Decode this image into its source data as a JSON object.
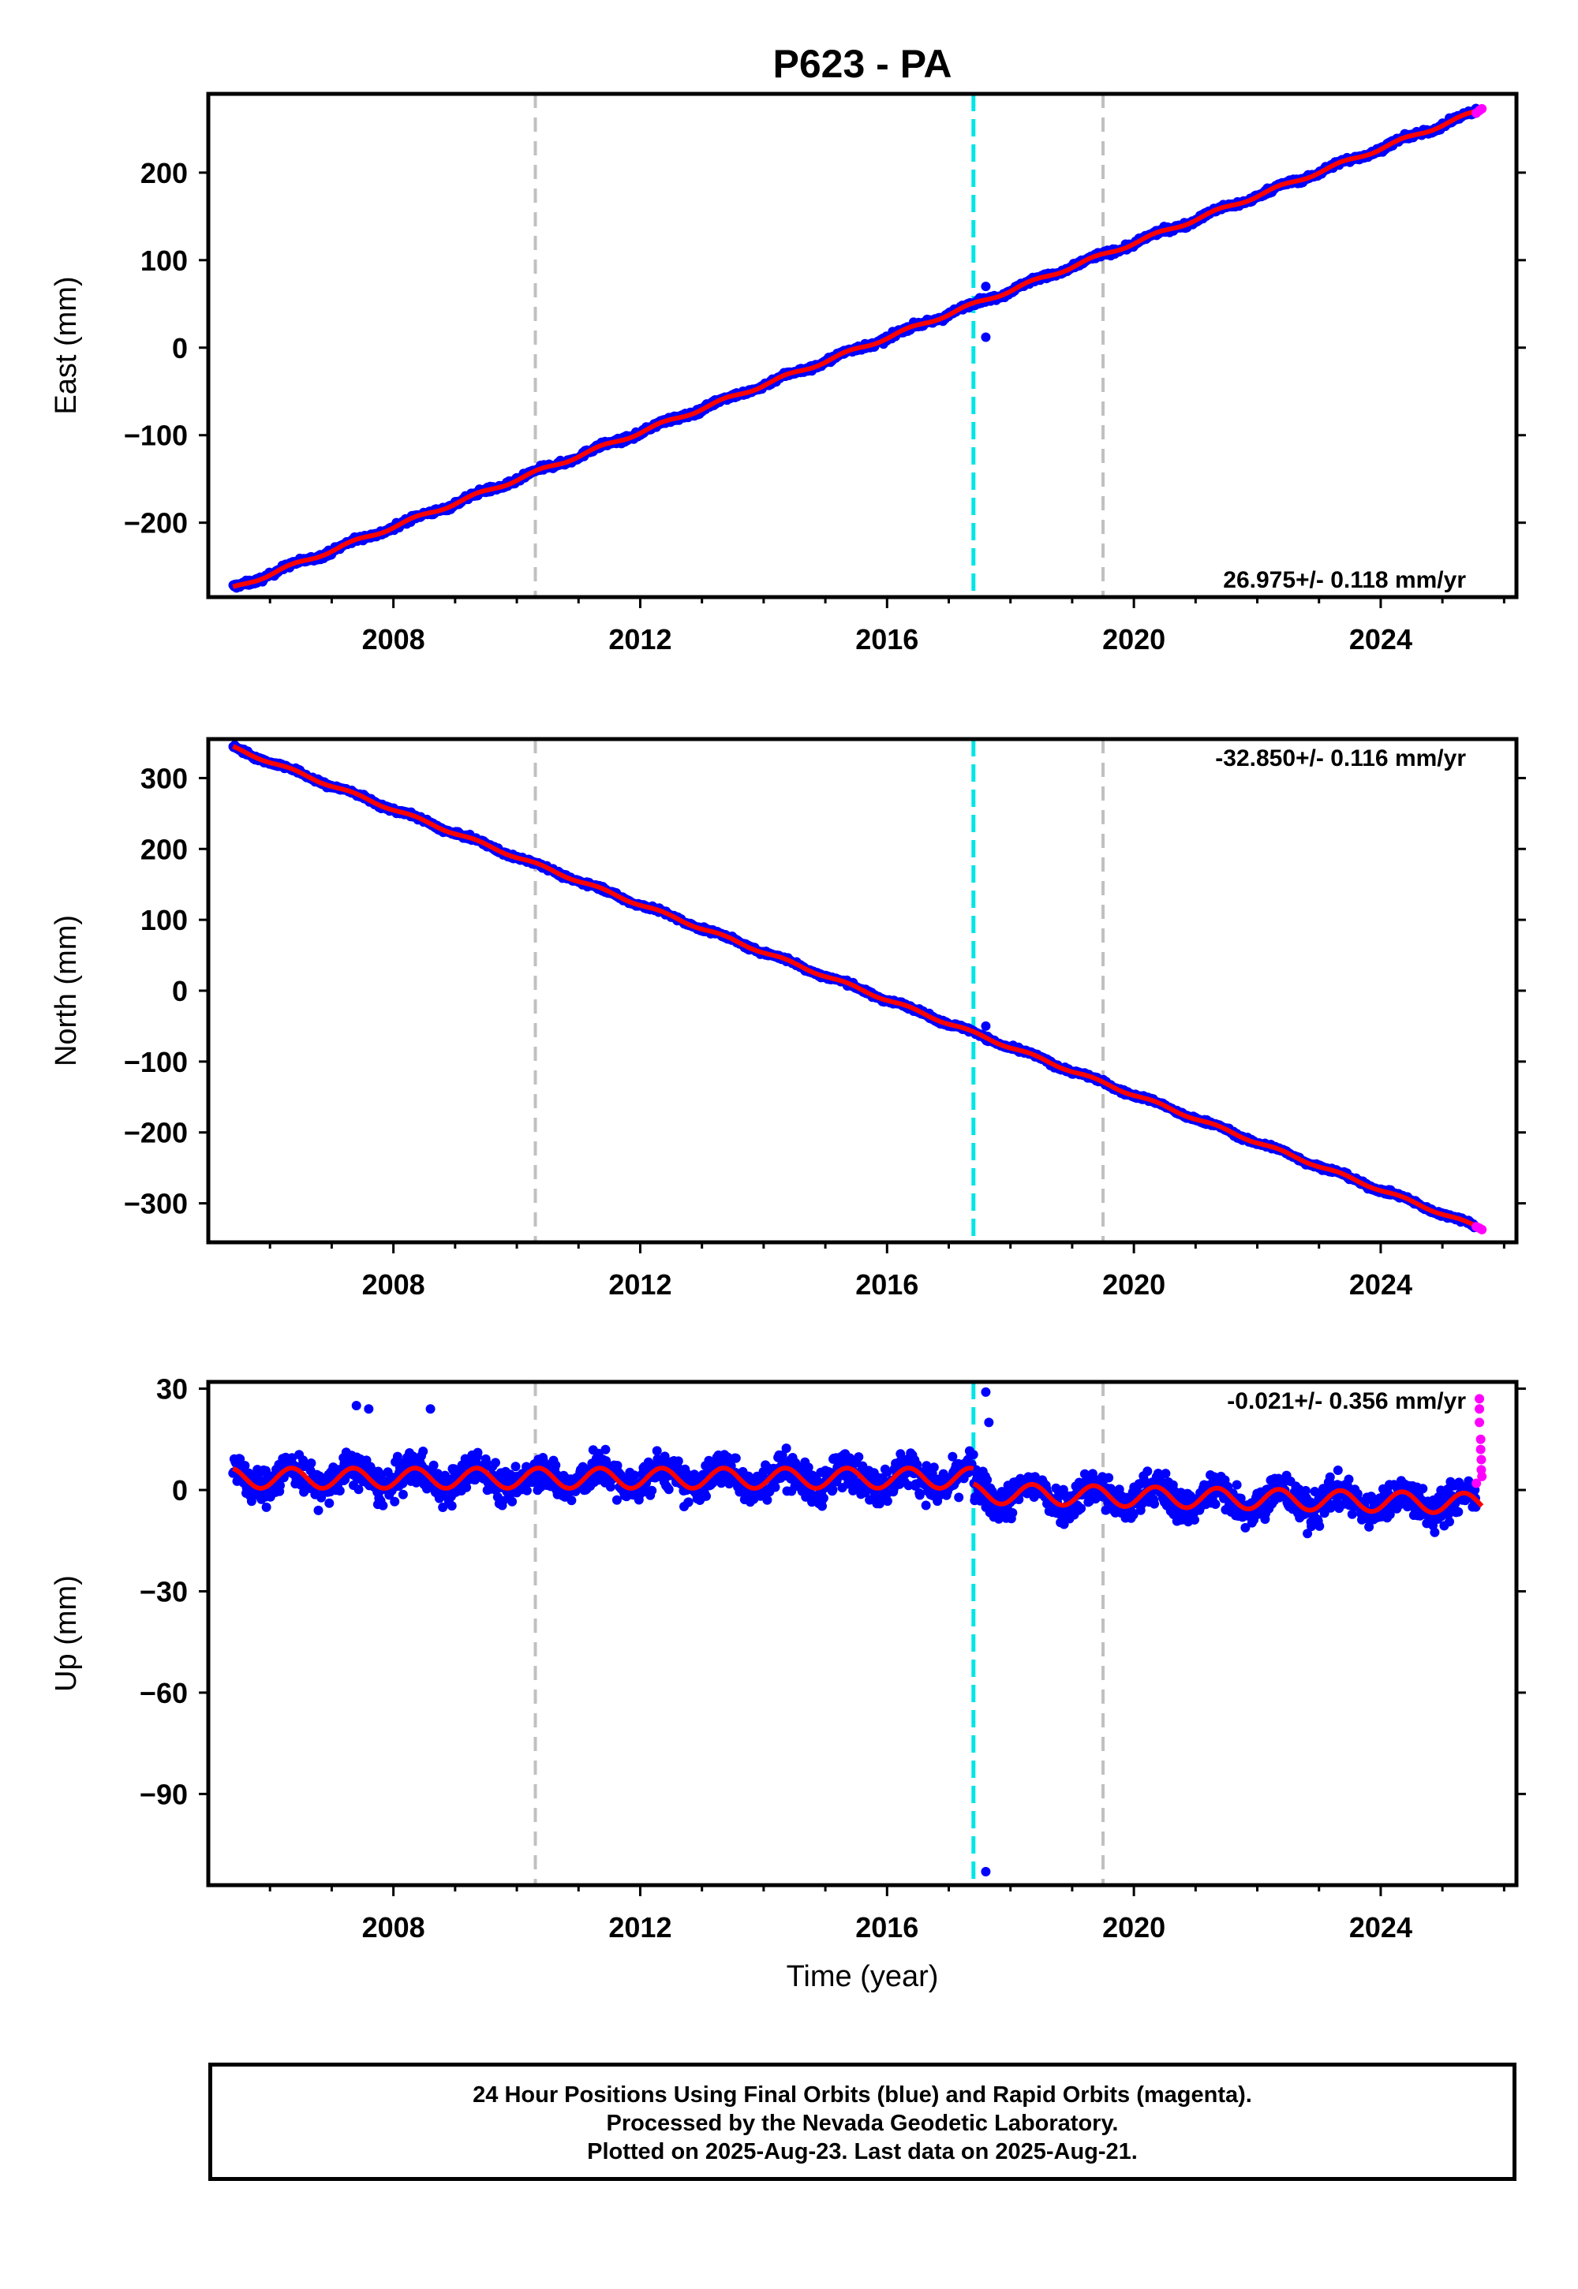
{
  "title": "P623 - PA",
  "colors": {
    "final_orbits": "#0000ff",
    "rapid_orbits": "#ff00ff",
    "model": "#ff0000",
    "eq_line": "#00e5e5",
    "equip_line": "#c0c0c0"
  },
  "footer": {
    "line1": "24 Hour Positions Using Final Orbits (blue) and Rapid Orbits (magenta).",
    "line2": "Processed by the Nevada Geodetic Laboratory.",
    "line3": "Plotted on 2025-Aug-23. Last data on 2025-Aug-21."
  },
  "chart_data": [
    {
      "type": "scatter",
      "ylabel": "East (mm)",
      "xlabel": "",
      "rate": "26.975+/- 0.118 mm/yr",
      "xlim": [
        2005.0,
        2026.2
      ],
      "ylim": [
        -285,
        290
      ],
      "yticks": [
        200,
        100,
        0,
        -100,
        -200
      ],
      "ytick_labels": [
        "200",
        "100",
        "0",
        "−100",
        "−200"
      ],
      "xticks": [
        2008,
        2012,
        2016,
        2020,
        2024
      ],
      "xtick_labels": [
        "2008",
        "2012",
        "2016",
        "2020",
        "2024"
      ],
      "vlines_gray": [
        2010.3,
        2019.5
      ],
      "vline_cyan": 2017.4,
      "trend": {
        "start": [
          2005.4,
          -275
        ],
        "end": [
          2025.64,
          272
        ]
      },
      "seasonal_amplitude": 2,
      "offset_at_cyan": 0,
      "noise": 3,
      "outliers": [
        [
          2017.6,
          12
        ],
        [
          2017.6,
          70
        ]
      ],
      "rapid_points": [
        [
          2025.55,
          268
        ],
        [
          2025.6,
          271
        ],
        [
          2025.64,
          273
        ]
      ]
    },
    {
      "type": "scatter",
      "ylabel": "North (mm)",
      "xlabel": "",
      "rate": "-32.850+/- 0.116 mm/yr",
      "xlim": [
        2005.0,
        2026.2
      ],
      "ylim": [
        -355,
        355
      ],
      "yticks": [
        300,
        200,
        100,
        0,
        -100,
        -200,
        -300
      ],
      "ytick_labels": [
        "300",
        "200",
        "100",
        "0",
        "−100",
        "−200",
        "−300"
      ],
      "xticks": [
        2008,
        2012,
        2016,
        2020,
        2024
      ],
      "xtick_labels": [
        "2008",
        "2012",
        "2016",
        "2020",
        "2024"
      ],
      "vlines_gray": [
        2010.3,
        2019.5
      ],
      "vline_cyan": 2017.4,
      "trend": {
        "start": [
          2005.4,
          343
        ],
        "end": [
          2025.64,
          -336
        ]
      },
      "seasonal_amplitude": 2,
      "offset_at_cyan": 0,
      "noise": 3,
      "outliers": [
        [
          2017.6,
          -50
        ]
      ],
      "rapid_points": [
        [
          2025.55,
          -333
        ],
        [
          2025.6,
          -335
        ],
        [
          2025.64,
          -337
        ]
      ]
    },
    {
      "type": "scatter",
      "ylabel": "Up (mm)",
      "xlabel": "Time (year)",
      "rate": "-0.021+/- 0.356 mm/yr",
      "xlim": [
        2005.0,
        2026.2
      ],
      "ylim": [
        -117,
        32
      ],
      "yticks": [
        30,
        0,
        -30,
        -60,
        -90
      ],
      "ytick_labels": [
        "30",
        "0",
        "−30",
        "−60",
        "−90"
      ],
      "xticks": [
        2008,
        2012,
        2016,
        2020,
        2024
      ],
      "xtick_labels": [
        "2008",
        "2012",
        "2016",
        "2020",
        "2024"
      ],
      "vlines_gray": [
        2010.3,
        2019.5
      ],
      "vline_cyan": 2017.4,
      "trend": {
        "start": [
          2005.4,
          3.5
        ],
        "end": [
          2017.4,
          3.5
        ]
      },
      "trend_after": {
        "start": [
          2017.4,
          -1
        ],
        "end": [
          2025.64,
          -4
        ]
      },
      "seasonal_amplitude": 3,
      "noise": 5,
      "outliers": [
        [
          2017.6,
          29
        ],
        [
          2017.65,
          20
        ],
        [
          2017.6,
          -113
        ],
        [
          2007.4,
          25
        ],
        [
          2008.6,
          24
        ],
        [
          2007.6,
          24
        ]
      ],
      "rapid_points": [
        [
          2025.6,
          27
        ],
        [
          2025.6,
          24
        ],
        [
          2025.6,
          20
        ],
        [
          2025.62,
          15
        ],
        [
          2025.62,
          12
        ],
        [
          2025.63,
          9
        ],
        [
          2025.63,
          6
        ],
        [
          2025.64,
          4
        ],
        [
          2025.55,
          2
        ]
      ]
    }
  ]
}
